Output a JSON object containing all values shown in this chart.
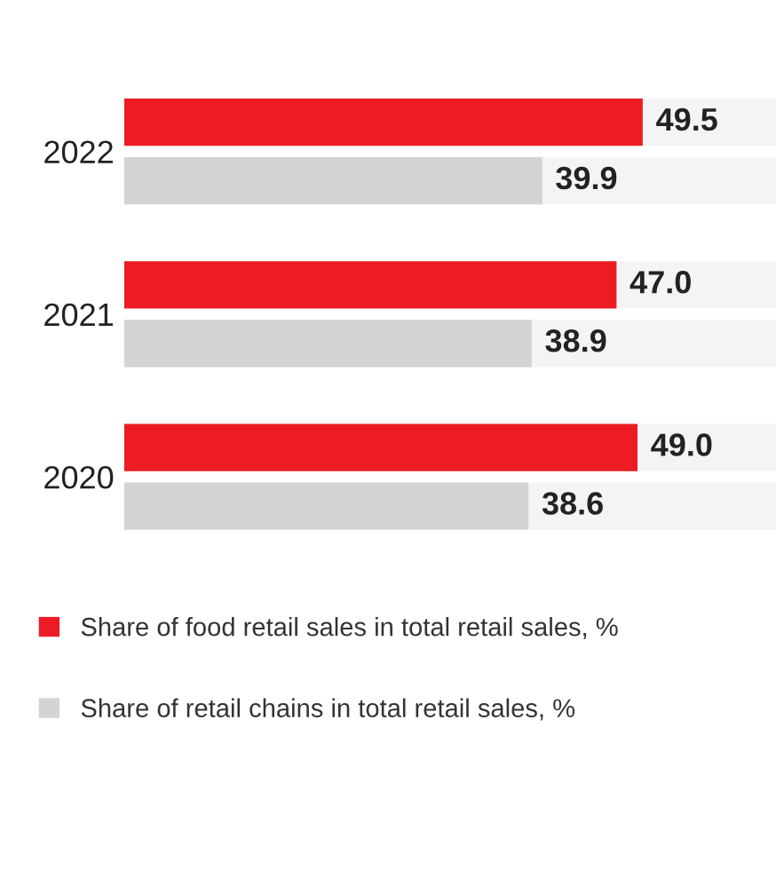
{
  "chart_data": {
    "type": "bar",
    "orientation": "horizontal",
    "categories": [
      "2022",
      "2021",
      "2020"
    ],
    "series": [
      {
        "name": "Share of food retail sales in total retail sales, %",
        "color": "#ed1c24",
        "values": [
          49.5,
          47.0,
          49.0
        ],
        "value_labels": [
          "49.5",
          "47.0",
          "49.0"
        ]
      },
      {
        "name": "Share of retail chains in total retail sales, %",
        "color": "#d3d4d6",
        "values": [
          39.9,
          38.9,
          38.6
        ],
        "value_labels": [
          "39.9",
          "38.9",
          "38.6"
        ]
      }
    ],
    "legend": "bottom",
    "grid": false
  }
}
